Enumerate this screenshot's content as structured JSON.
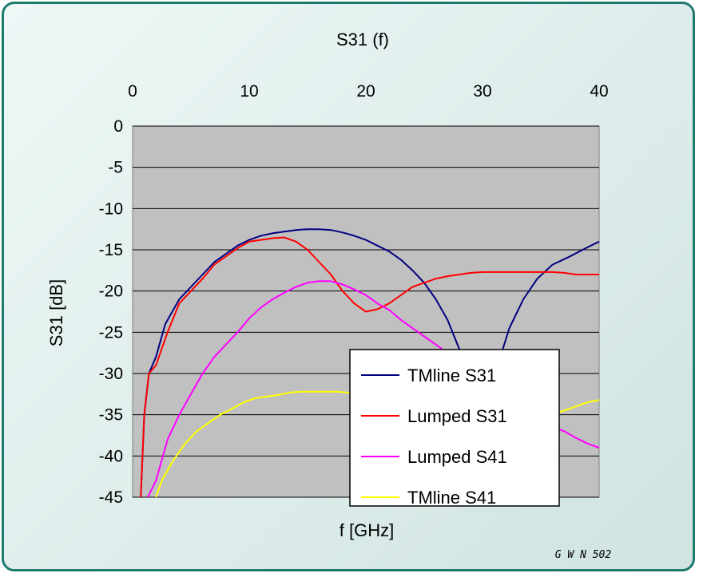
{
  "chart_data": {
    "type": "line",
    "title": "S31 (f)",
    "xlabel": "f [GHz]",
    "ylabel": "S31 [dB]",
    "xlim": [
      0,
      40
    ],
    "ylim": [
      -45,
      0
    ],
    "x_axis_position": "top",
    "x_ticks": [
      "0",
      "10",
      "20",
      "30",
      "40"
    ],
    "y_ticks": [
      "0",
      "-5",
      "-10",
      "-15",
      "-20",
      "-25",
      "-30",
      "-35",
      "-40",
      "-45"
    ],
    "grid": "horizontal",
    "legend_position": "bottom-right",
    "plot_background": "#c0c0c0",
    "series": [
      {
        "name": "TMline S31",
        "color": "#000080",
        "points": [
          [
            0.7,
            -45
          ],
          [
            1.0,
            -35
          ],
          [
            1.4,
            -30
          ],
          [
            2.0,
            -28
          ],
          [
            2.8,
            -24
          ],
          [
            4,
            -21
          ],
          [
            5,
            -19.5
          ],
          [
            6,
            -18
          ],
          [
            7,
            -16.5
          ],
          [
            8,
            -15.5
          ],
          [
            9,
            -14.5
          ],
          [
            10,
            -13.8
          ],
          [
            11,
            -13.3
          ],
          [
            12,
            -13
          ],
          [
            13,
            -12.8
          ],
          [
            14,
            -12.6
          ],
          [
            15,
            -12.5
          ],
          [
            16,
            -12.5
          ],
          [
            17,
            -12.6
          ],
          [
            18,
            -12.9
          ],
          [
            19,
            -13.3
          ],
          [
            20,
            -13.8
          ],
          [
            21,
            -14.5
          ],
          [
            22,
            -15.2
          ],
          [
            23,
            -16.2
          ],
          [
            24,
            -17.5
          ],
          [
            25,
            -19
          ],
          [
            26,
            -21
          ],
          [
            27,
            -23.5
          ],
          [
            28,
            -27
          ],
          [
            28.8,
            -31
          ],
          [
            29.6,
            -33
          ],
          [
            30.4,
            -32
          ],
          [
            31.3,
            -29
          ],
          [
            32.3,
            -24.5
          ],
          [
            33.5,
            -21
          ],
          [
            34.7,
            -18.5
          ],
          [
            36,
            -16.8
          ],
          [
            37.5,
            -15.8
          ],
          [
            39,
            -14.7
          ],
          [
            40,
            -14
          ]
        ]
      },
      {
        "name": "Lumped S31",
        "color": "#ff0000",
        "points": [
          [
            0.7,
            -45
          ],
          [
            1.0,
            -35
          ],
          [
            1.4,
            -30
          ],
          [
            2.0,
            -29
          ],
          [
            3,
            -25
          ],
          [
            4,
            -21.5
          ],
          [
            5,
            -20
          ],
          [
            6,
            -18.5
          ],
          [
            7,
            -16.8
          ],
          [
            8,
            -15.8
          ],
          [
            9,
            -14.8
          ],
          [
            10,
            -14
          ],
          [
            11,
            -13.8
          ],
          [
            12,
            -13.6
          ],
          [
            13,
            -13.5
          ],
          [
            14,
            -14
          ],
          [
            15,
            -15
          ],
          [
            16,
            -16.5
          ],
          [
            17,
            -18
          ],
          [
            18,
            -20
          ],
          [
            19,
            -21.5
          ],
          [
            20,
            -22.5
          ],
          [
            21,
            -22.2
          ],
          [
            22,
            -21.5
          ],
          [
            23,
            -20.5
          ],
          [
            24,
            -19.5
          ],
          [
            25,
            -19
          ],
          [
            26,
            -18.5
          ],
          [
            27,
            -18.2
          ],
          [
            28,
            -18
          ],
          [
            29,
            -17.8
          ],
          [
            30,
            -17.7
          ],
          [
            33,
            -17.7
          ],
          [
            36,
            -17.7
          ],
          [
            37,
            -17.8
          ],
          [
            38,
            -18
          ],
          [
            40,
            -18
          ]
        ]
      },
      {
        "name": "Lumped S41",
        "color": "#ff00ff",
        "points": [
          [
            1.3,
            -45
          ],
          [
            2,
            -43
          ],
          [
            3,
            -38
          ],
          [
            4,
            -35
          ],
          [
            5,
            -32.5
          ],
          [
            6,
            -30
          ],
          [
            7,
            -28
          ],
          [
            8,
            -26.5
          ],
          [
            9,
            -25
          ],
          [
            10,
            -23.3
          ],
          [
            11,
            -22
          ],
          [
            12,
            -21
          ],
          [
            13,
            -20.2
          ],
          [
            14,
            -19.5
          ],
          [
            15,
            -19
          ],
          [
            16,
            -18.8
          ],
          [
            17,
            -18.8
          ],
          [
            18,
            -19.2
          ],
          [
            19,
            -19.8
          ],
          [
            20,
            -20.5
          ],
          [
            21,
            -21.5
          ],
          [
            22,
            -22.3
          ],
          [
            23,
            -23.5
          ],
          [
            24,
            -24.5
          ],
          [
            25,
            -25.5
          ],
          [
            26,
            -26.5
          ],
          [
            27,
            -27.5
          ],
          [
            28,
            -28.5
          ],
          [
            36,
            -36.5
          ],
          [
            37,
            -37
          ],
          [
            38,
            -37.8
          ],
          [
            39,
            -38.5
          ],
          [
            40,
            -39
          ]
        ]
      },
      {
        "name": "TMline S41",
        "color": "#ffff00",
        "points": [
          [
            2,
            -45
          ],
          [
            2.5,
            -43
          ],
          [
            3.5,
            -40.5
          ],
          [
            4.5,
            -38.5
          ],
          [
            5.5,
            -37
          ],
          [
            6.5,
            -36
          ],
          [
            7.5,
            -35
          ],
          [
            8.5,
            -34.3
          ],
          [
            9.5,
            -33.5
          ],
          [
            10.5,
            -33
          ],
          [
            11.5,
            -32.8
          ],
          [
            12.5,
            -32.6
          ],
          [
            13.5,
            -32.3
          ],
          [
            14.5,
            -32.2
          ],
          [
            16,
            -32.2
          ],
          [
            17.5,
            -32.2
          ],
          [
            18.3,
            -32.3
          ],
          [
            36.2,
            -34.8
          ],
          [
            37,
            -34.5
          ],
          [
            38,
            -34
          ],
          [
            39,
            -33.5
          ],
          [
            40,
            -33.2
          ]
        ]
      }
    ]
  },
  "footer": {
    "tag": "G W N  502"
  }
}
